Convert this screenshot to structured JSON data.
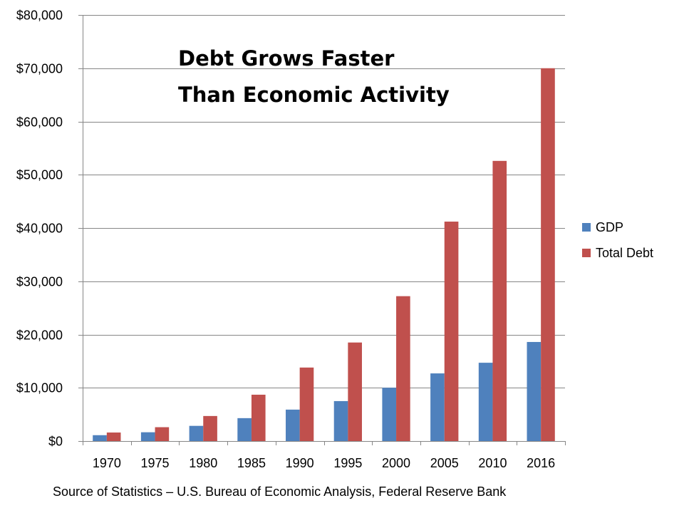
{
  "chart_data": {
    "type": "bar",
    "title_lines": [
      "Debt Grows Faster",
      "Than Economic Activity"
    ],
    "categories": [
      "1970",
      "1975",
      "1980",
      "1985",
      "1990",
      "1995",
      "2000",
      "2005",
      "2010",
      "2016"
    ],
    "series": [
      {
        "name": "GDP",
        "color": "#4F81BD",
        "values": [
          1100,
          1650,
          2850,
          4300,
          5900,
          7500,
          10000,
          12700,
          14700,
          18600
        ]
      },
      {
        "name": "Total Debt",
        "color": "#C0504D",
        "values": [
          1600,
          2600,
          4700,
          8700,
          13800,
          18500,
          27200,
          41200,
          52600,
          70000
        ]
      }
    ],
    "ylim": [
      0,
      80000
    ],
    "yticks": [
      0,
      10000,
      20000,
      30000,
      40000,
      50000,
      60000,
      70000,
      80000
    ],
    "ytick_labels": [
      "$0",
      "$10,000",
      "$20,000",
      "$30,000",
      "$40,000",
      "$50,000",
      "$60,000",
      "$70,000",
      "$80,000"
    ],
    "xlabel": "",
    "ylabel": "",
    "grid": true,
    "legend_position": "right"
  },
  "footer": {
    "source": "Source of Statistics – U.S. Bureau of Economic Analysis, Federal Reserve Bank"
  }
}
